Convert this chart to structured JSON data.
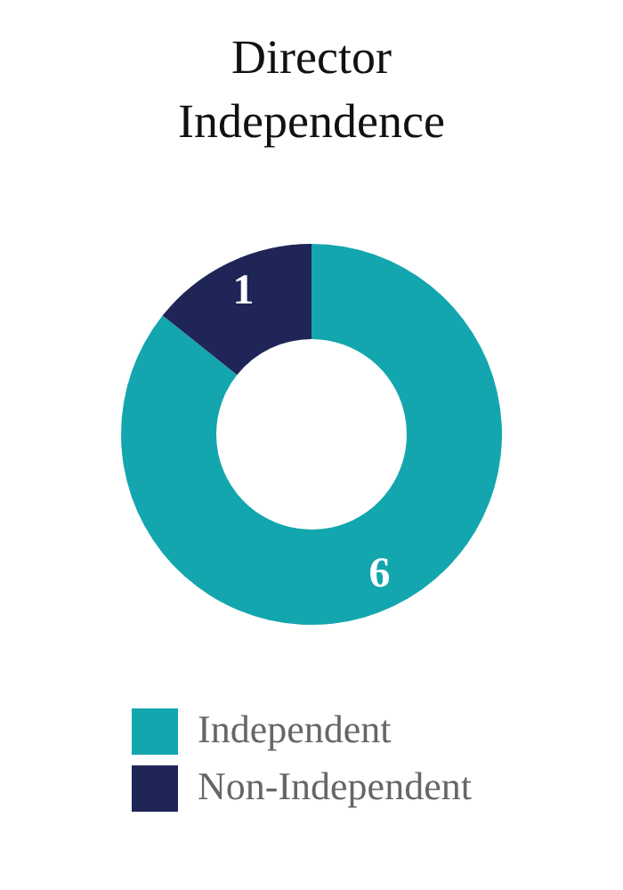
{
  "chart_data": {
    "type": "donut",
    "title": "Director Independence",
    "categories": [
      "Independent",
      "Non-Independent"
    ],
    "values": [
      6,
      1
    ],
    "colors": [
      "#13a6ae",
      "#1f2557"
    ],
    "data_labels": true,
    "legend": "bottom"
  }
}
